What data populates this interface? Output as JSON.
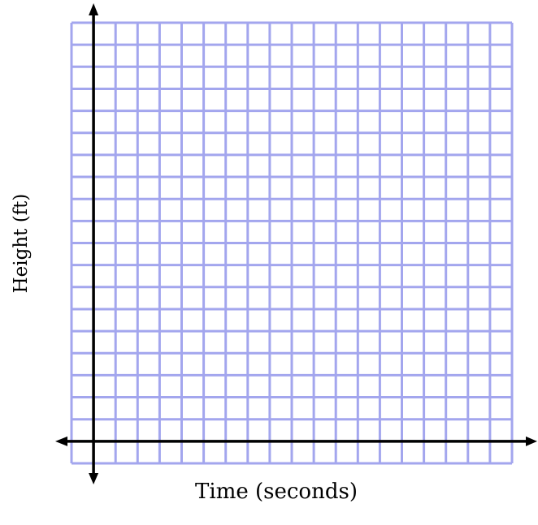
{
  "chart_data": {
    "type": "scatter",
    "title": "",
    "xlabel": "Time (seconds)",
    "ylabel": "Height (ft)",
    "grid": true,
    "x_gridlines": 20,
    "y_gridlines": 20,
    "series": [],
    "colors": {
      "grid": "#a3a6ee",
      "axis": "#000000"
    }
  }
}
